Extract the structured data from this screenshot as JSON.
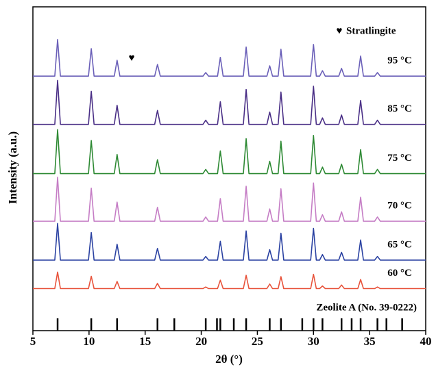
{
  "chart_data": {
    "type": "line",
    "x_label": "2θ (°)",
    "y_label": "Intensity (a.u.)",
    "xlim": [
      5,
      40
    ],
    "xticks": [
      5,
      10,
      15,
      20,
      25,
      30,
      35,
      40
    ],
    "ylim": [
      0,
      100
    ],
    "legend": {
      "marker": "♥",
      "label": "Stratlingite"
    },
    "annotations": [
      {
        "text": "♥",
        "x": 13.8,
        "y": 84
      }
    ],
    "x": [
      5,
      6.95,
      7.2,
      7.45,
      9.95,
      10.2,
      10.45,
      12.25,
      12.5,
      12.75,
      15.85,
      16.1,
      16.35,
      20.15,
      20.4,
      20.65,
      21.45,
      21.7,
      21.95,
      23.75,
      24.0,
      24.25,
      25.85,
      26.1,
      26.35,
      26.85,
      27.1,
      27.35,
      29.75,
      30.0,
      30.25,
      30.55,
      30.8,
      31.05,
      32.25,
      32.5,
      32.75,
      33.95,
      34.2,
      34.45,
      35.45,
      35.7,
      35.95,
      40
    ],
    "series": [
      {
        "name": "95 °C",
        "color": "#6a5fb8",
        "values": [
          78.6,
          78.6,
          89.9,
          78.6,
          78.6,
          87.1,
          78.6,
          78.6,
          83.5,
          78.6,
          78.6,
          82.2,
          78.6,
          78.6,
          79.7,
          78.6,
          78.6,
          84.4,
          78.6,
          78.6,
          87.6,
          78.6,
          78.6,
          81.8,
          78.6,
          78.6,
          86.9,
          78.6,
          78.6,
          88.4,
          78.6,
          78.6,
          80.3,
          78.6,
          78.6,
          81.0,
          78.6,
          78.6,
          84.8,
          78.6,
          78.6,
          79.7,
          78.6,
          78.6
        ]
      },
      {
        "name": "85 °C",
        "color": "#4a2f86",
        "values": [
          63.7,
          63.7,
          77.3,
          63.7,
          63.7,
          73.9,
          63.7,
          63.7,
          69.6,
          63.7,
          63.7,
          68.0,
          63.7,
          63.7,
          65.0,
          63.7,
          63.7,
          70.7,
          63.7,
          63.7,
          74.5,
          63.7,
          63.7,
          67.5,
          63.7,
          63.7,
          73.7,
          63.7,
          63.7,
          75.5,
          63.7,
          63.7,
          65.7,
          63.7,
          63.7,
          66.6,
          63.7,
          63.7,
          71.1,
          63.7,
          63.7,
          65.0,
          63.7,
          63.7
        ]
      },
      {
        "name": "75 °C",
        "color": "#2e8a34",
        "values": [
          48.5,
          48.5,
          62.1,
          48.5,
          48.5,
          58.7,
          48.5,
          48.5,
          54.4,
          48.5,
          48.5,
          52.8,
          48.5,
          48.5,
          49.8,
          48.5,
          48.5,
          55.5,
          48.5,
          48.5,
          59.3,
          48.5,
          48.5,
          52.3,
          48.5,
          48.5,
          58.5,
          48.5,
          48.5,
          60.3,
          48.5,
          48.5,
          50.5,
          48.5,
          48.5,
          51.4,
          48.5,
          48.5,
          55.9,
          48.5,
          48.5,
          49.8,
          48.5,
          48.5
        ]
      },
      {
        "name": "70 °C",
        "color": "#c57dc5",
        "values": [
          33.8,
          33.8,
          47.4,
          33.8,
          33.8,
          44.0,
          33.8,
          33.8,
          39.7,
          33.8,
          33.8,
          38.1,
          33.8,
          33.8,
          35.1,
          33.8,
          33.8,
          40.8,
          33.8,
          33.8,
          44.6,
          33.8,
          33.8,
          37.6,
          33.8,
          33.8,
          43.8,
          33.8,
          33.8,
          45.6,
          33.8,
          33.8,
          35.8,
          33.8,
          33.8,
          36.7,
          33.8,
          33.8,
          41.2,
          33.8,
          33.8,
          35.1,
          33.8,
          33.8
        ]
      },
      {
        "name": "65 °C",
        "color": "#2b42a2",
        "values": [
          21.8,
          21.8,
          33.1,
          21.8,
          21.8,
          30.3,
          21.8,
          21.8,
          26.7,
          21.8,
          21.8,
          25.4,
          21.8,
          21.8,
          22.9,
          21.8,
          21.8,
          27.6,
          21.8,
          21.8,
          30.8,
          21.8,
          21.8,
          25.0,
          21.8,
          21.8,
          30.1,
          21.8,
          21.8,
          31.6,
          21.8,
          21.8,
          23.5,
          21.8,
          21.8,
          24.2,
          21.8,
          21.8,
          28.0,
          21.8,
          21.8,
          22.9,
          21.8,
          21.8
        ]
      },
      {
        "name": "60 °C",
        "color": "#e8533b",
        "values": [
          13.0,
          13.0,
          18.1,
          13.0,
          13.0,
          16.8,
          13.0,
          13.0,
          15.2,
          13.0,
          13.0,
          14.6,
          13.0,
          13.0,
          13.5,
          13.0,
          13.0,
          15.6,
          13.0,
          13.0,
          17.1,
          13.0,
          13.0,
          14.4,
          13.0,
          13.0,
          16.7,
          13.0,
          13.0,
          17.4,
          13.0,
          13.0,
          13.8,
          13.0,
          13.0,
          14.1,
          13.0,
          13.0,
          15.8,
          13.0,
          13.0,
          13.5,
          13.0,
          13.0
        ]
      }
    ],
    "reference": {
      "name": "Zeolite A (No. 39-0222)",
      "color": "#000000",
      "x": [
        7.2,
        10.2,
        12.5,
        16.1,
        17.6,
        20.4,
        21.4,
        21.7,
        22.9,
        24.0,
        26.1,
        27.1,
        29.0,
        30.0,
        30.8,
        32.5,
        33.4,
        34.2,
        35.7,
        36.5,
        37.9
      ],
      "values": [
        3.8,
        3.8,
        3.8,
        3.8,
        3.8,
        3.8,
        3.8,
        3.8,
        3.8,
        3.8,
        3.8,
        3.8,
        3.8,
        3.8,
        3.8,
        3.8,
        3.8,
        3.8,
        3.8,
        3.8,
        3.8
      ]
    }
  }
}
